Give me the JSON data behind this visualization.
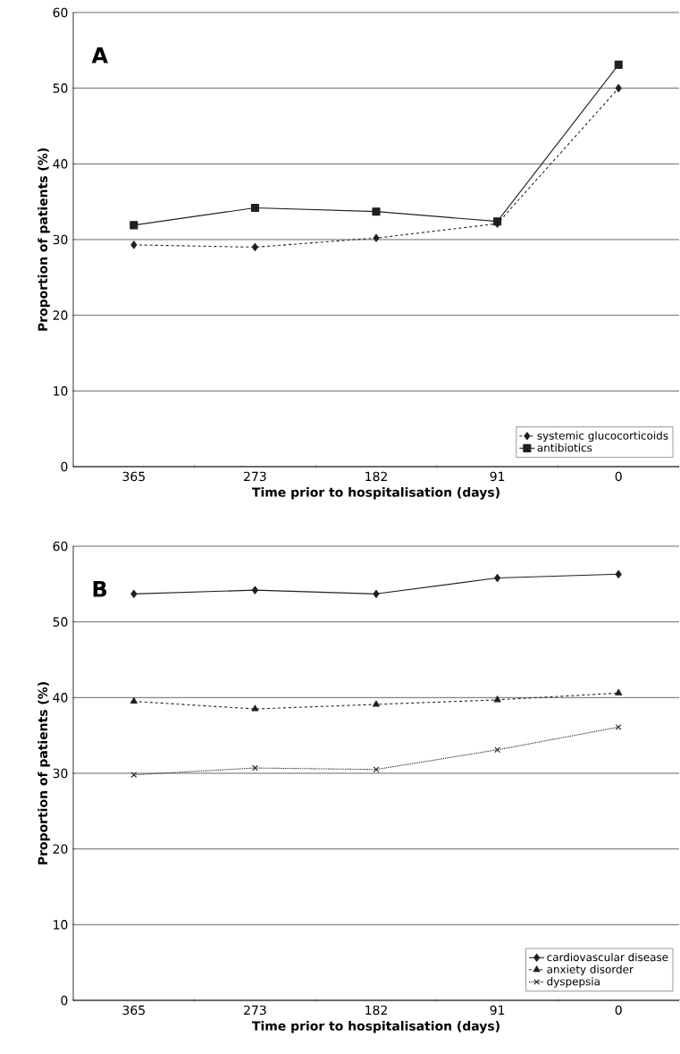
{
  "chart_data": [
    {
      "type": "line",
      "title": "A",
      "xlabel": "Time prior to hospitalisation (days)",
      "ylabel": "Proportion of patients (%)",
      "categories": [
        "365",
        "273",
        "182",
        "91",
        "0"
      ],
      "ylim": [
        0,
        60
      ],
      "yticks": [
        0,
        10,
        20,
        30,
        40,
        50,
        60
      ],
      "grid": "y",
      "legend": "bottom right",
      "series": [
        {
          "name": "systemic glucocorticoids",
          "color": "#231f20",
          "marker": "diamond",
          "line_style": "dashed",
          "values": [
            29.3,
            29.0,
            30.2,
            32.1,
            50.0
          ]
        },
        {
          "name": "antibiotics",
          "color": "#231f20",
          "marker": "square",
          "line_style": "solid",
          "values": [
            31.9,
            34.2,
            33.7,
            32.4,
            53.1
          ]
        }
      ]
    },
    {
      "type": "line",
      "title": "B",
      "xlabel": "Time prior to hospitalisation (days)",
      "ylabel": "Proportion of patients (%)",
      "categories": [
        "365",
        "273",
        "182",
        "91",
        "0"
      ],
      "ylim": [
        0,
        60
      ],
      "yticks": [
        0,
        10,
        20,
        30,
        40,
        50,
        60
      ],
      "grid": "y",
      "legend": "bottom right",
      "series": [
        {
          "name": "cardiovascular disease",
          "color": "#231f20",
          "marker": "diamond",
          "line_style": "solid",
          "values": [
            53.7,
            54.2,
            53.7,
            55.8,
            56.3
          ]
        },
        {
          "name": "anxiety disorder",
          "color": "#231f20",
          "marker": "triangle",
          "line_style": "dashed",
          "values": [
            39.5,
            38.5,
            39.1,
            39.7,
            40.6
          ]
        },
        {
          "name": "dyspepsia",
          "color": "#231f20",
          "marker": "cross",
          "line_style": "dotted",
          "values": [
            29.8,
            30.7,
            30.5,
            33.1,
            36.1
          ]
        }
      ]
    }
  ]
}
